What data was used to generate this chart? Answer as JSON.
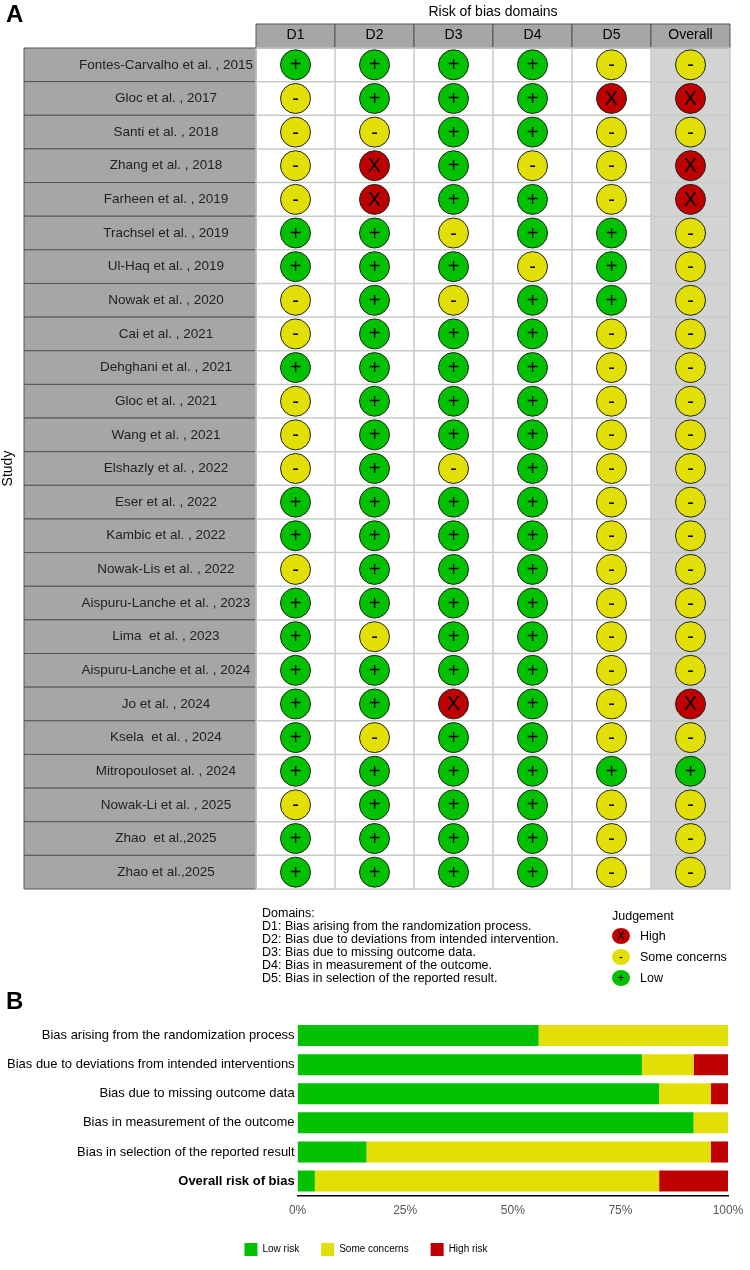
{
  "chart_data": [
    {
      "type": "heatmap",
      "title": "Risk of bias domains",
      "ylabel": "Study",
      "annotations": [
        "A",
        "Domains:",
        "D1: Bias arising from the randomization process.",
        "D2: Bias due to deviations from intended intervention.",
        "D3: Bias due to missing outcome data.",
        "D4: Bias in measurement of the outcome.",
        "D5: Bias in selection of the reported result."
      ],
      "categories": [
        "D1",
        "D2",
        "D3",
        "D4",
        "D5",
        "Overall"
      ],
      "y_categories": [
        "Fontes-Carvalho et al. , 2015",
        "Gloc et al. , 2017",
        "Santi et al. , 2018",
        "Zhang et al. , 2018",
        "Farheen et al. , 2019",
        "Trachsel et al. , 2019",
        "Ul-Haq et al. , 2019",
        "Nowak et al. , 2020",
        "Cai et al. , 2021",
        "Dehghani et al. , 2021",
        "Gloc et al. , 2021",
        "Wang et al. , 2021",
        "Elshazly et al. , 2022",
        "Eser et al. , 2022",
        "Kambic et al. , 2022",
        "Nowak-Lis et al. , 2022",
        "Aispuru-Lanche et al. , 2023",
        "Lima  et al. , 2023",
        "Aispuru-Lanche et al. , 2024",
        "Jo et al. , 2024",
        "Ksela  et al. , 2024",
        "Mitropouloset al. , 2024",
        "Nowak-Li et al. , 2025",
        "Zhao  et al.,2025",
        "Zhao et al.,2025"
      ],
      "cells": [
        [
          "+",
          "+",
          "+",
          "+",
          "-",
          "-"
        ],
        [
          "-",
          "+",
          "+",
          "+",
          "X",
          "X"
        ],
        [
          "-",
          "-",
          "+",
          "+",
          "-",
          "-"
        ],
        [
          "-",
          "X",
          "+",
          "-",
          "-",
          "X"
        ],
        [
          "-",
          "X",
          "+",
          "+",
          "-",
          "X"
        ],
        [
          "+",
          "+",
          "-",
          "+",
          "+",
          "-"
        ],
        [
          "+",
          "+",
          "+",
          "-",
          "+",
          "-"
        ],
        [
          "-",
          "+",
          "-",
          "+",
          "+",
          "-"
        ],
        [
          "-",
          "+",
          "+",
          "+",
          "-",
          "-"
        ],
        [
          "+",
          "+",
          "+",
          "+",
          "-",
          "-"
        ],
        [
          "-",
          "+",
          "+",
          "+",
          "-",
          "-"
        ],
        [
          "-",
          "+",
          "+",
          "+",
          "-",
          "-"
        ],
        [
          "-",
          "+",
          "-",
          "+",
          "-",
          "-"
        ],
        [
          "+",
          "+",
          "+",
          "+",
          "-",
          "-"
        ],
        [
          "+",
          "+",
          "+",
          "+",
          "-",
          "-"
        ],
        [
          "-",
          "+",
          "+",
          "+",
          "-",
          "-"
        ],
        [
          "+",
          "+",
          "+",
          "+",
          "-",
          "-"
        ],
        [
          "+",
          "-",
          "+",
          "+",
          "-",
          "-"
        ],
        [
          "+",
          "+",
          "+",
          "+",
          "-",
          "-"
        ],
        [
          "+",
          "+",
          "X",
          "+",
          "-",
          "X"
        ],
        [
          "+",
          "-",
          "+",
          "+",
          "-",
          "-"
        ],
        [
          "+",
          "+",
          "+",
          "+",
          "+",
          "+"
        ],
        [
          "-",
          "+",
          "+",
          "+",
          "-",
          "-"
        ],
        [
          "+",
          "+",
          "+",
          "+",
          "-",
          "-"
        ],
        [
          "+",
          "+",
          "+",
          "+",
          "-",
          "-"
        ]
      ]
    },
    {
      "type": "other",
      "legend_title": "Judgement",
      "categories": [
        "High",
        "Some concerns",
        "Low"
      ],
      "colors": [
        "#bf0000",
        "#e2df07",
        "#02c100"
      ],
      "annotations": [
        "X",
        "-",
        "+"
      ]
    },
    {
      "type": "bar",
      "orientation": "horizontal",
      "stacked": true,
      "legend": "bottom",
      "grid": false,
      "annotations": [
        "B"
      ],
      "categories": [
        "Bias arising from the randomization process",
        "Bias due to deviations from intended interventions",
        "Bias due to missing outcome data",
        "Bias in measurement of the outcome",
        "Bias in selection of the reported result",
        "Overall risk of bias"
      ],
      "series": [
        {
          "name": "Low risk",
          "color": "#02c100",
          "values": [
            56,
            80,
            84,
            92,
            16,
            4
          ]
        },
        {
          "name": "Some concerns",
          "color": "#e2df07",
          "values": [
            44,
            12,
            12,
            8,
            80,
            80
          ]
        },
        {
          "name": "High risk",
          "color": "#bf0000",
          "values": [
            0,
            8,
            4,
            0,
            4,
            16
          ]
        }
      ],
      "xlim": [
        0,
        100
      ],
      "xticks": [
        {
          "value": 0,
          "label": "0%"
        },
        {
          "value": 25,
          "label": "25%"
        },
        {
          "value": 50,
          "label": "50%"
        },
        {
          "value": 75,
          "label": "75%"
        },
        {
          "value": 100,
          "label": "100%"
        }
      ]
    }
  ]
}
